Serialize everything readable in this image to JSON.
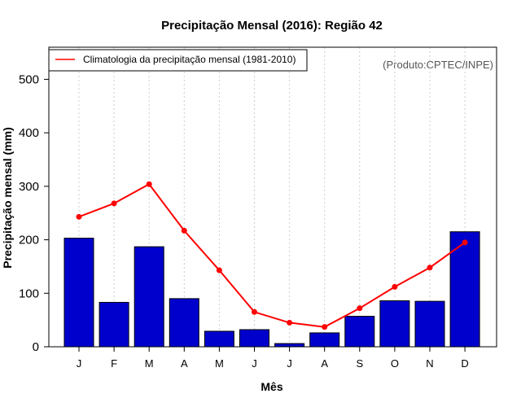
{
  "chart_data": {
    "type": "bar",
    "title": "Precipitação Mensal (2016): Região 42",
    "xlabel": "Mês",
    "ylabel": "Precipitação mensal (mm)",
    "credit": "(Produto:CPTEC/INPE)",
    "categories": [
      "J",
      "F",
      "M",
      "A",
      "M",
      "J",
      "J",
      "A",
      "S",
      "O",
      "N",
      "D"
    ],
    "ylim": [
      0,
      560
    ],
    "yticks": [
      0,
      100,
      200,
      300,
      400,
      500
    ],
    "grid": "vertical-dotted",
    "legend_position": "top-left",
    "series": [
      {
        "name": "Precipitação mensal 2016",
        "kind": "bar",
        "color": "#0000CD",
        "values": [
          203,
          83,
          187,
          90,
          29,
          32,
          6,
          26,
          57,
          86,
          85,
          215
        ]
      },
      {
        "name": "Climatologia da precipitação mensal (1981-2010)",
        "kind": "line",
        "color": "#FF0000",
        "values": [
          243,
          268,
          304,
          217,
          143,
          65,
          45,
          37,
          72,
          112,
          148,
          195
        ]
      }
    ]
  }
}
